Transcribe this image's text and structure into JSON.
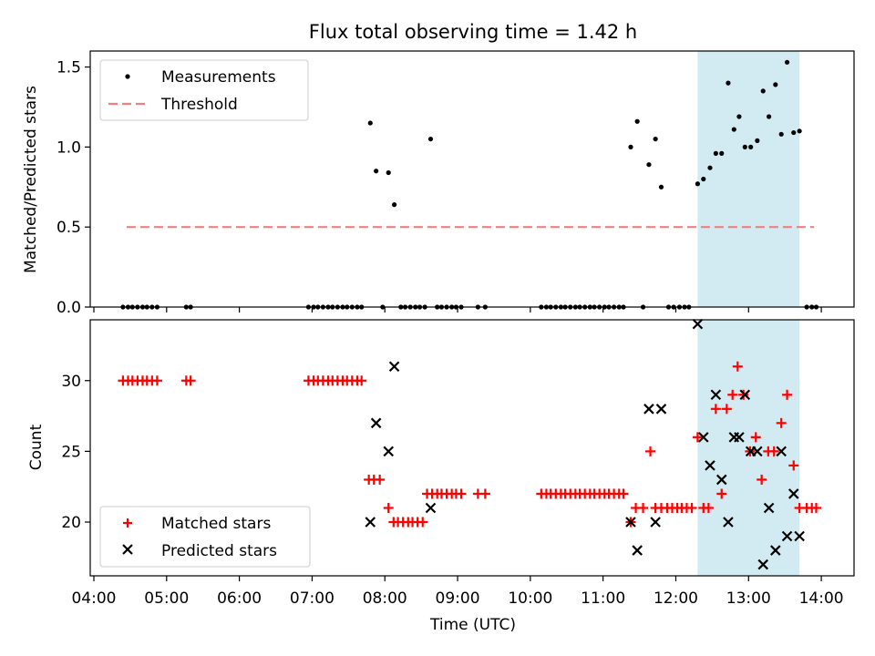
{
  "figure": {
    "title": "Flux total observing time = 1.42 h",
    "xlabel": "Time (UTC)",
    "x_ticks": [
      "04:00",
      "05:00",
      "06:00",
      "07:00",
      "08:00",
      "09:00",
      "10:00",
      "11:00",
      "12:00",
      "13:00",
      "14:00"
    ],
    "colors": {
      "measurements": "#000000",
      "threshold": "#f08080",
      "matched": "#ff0000",
      "predicted": "#000000",
      "highlight": "#add8e6"
    }
  },
  "chart_data": [
    {
      "type": "scatter",
      "panel": "top",
      "ylabel": "Matched/Predicted stars",
      "x_range_hours": [
        3.95,
        14.45
      ],
      "ylim": [
        0,
        1.6
      ],
      "y_ticks": [
        "0.0",
        "0.5",
        "1.0",
        "1.5"
      ],
      "highlight_span_hours": [
        12.3,
        13.7
      ],
      "legend": {
        "placement": "upper-left",
        "entries": [
          "Measurements",
          "Threshold"
        ]
      },
      "threshold": {
        "value": 0.5,
        "x_start": 4.45,
        "x_end": 13.9
      },
      "series": [
        {
          "name": "Measurements",
          "x_hours": [
            4.4,
            4.47,
            4.53,
            4.6,
            4.67,
            4.73,
            4.8,
            4.87,
            5.27,
            5.33,
            6.95,
            7.02,
            7.08,
            7.15,
            7.22,
            7.28,
            7.35,
            7.42,
            7.48,
            7.55,
            7.62,
            7.68,
            7.8,
            7.88,
            7.97,
            8.05,
            8.13,
            8.22,
            8.28,
            8.35,
            8.42,
            8.48,
            8.55,
            8.63,
            8.72,
            8.78,
            8.85,
            8.92,
            8.98,
            9.05,
            9.28,
            9.38,
            10.15,
            10.22,
            10.28,
            10.35,
            10.42,
            10.48,
            10.55,
            10.62,
            10.68,
            10.75,
            10.82,
            10.88,
            10.95,
            11.02,
            11.08,
            11.15,
            11.22,
            11.28,
            11.38,
            11.47,
            11.55,
            11.63,
            11.72,
            11.8,
            11.9,
            11.97,
            12.05,
            12.12,
            12.18,
            12.3,
            12.38,
            12.47,
            12.55,
            12.63,
            12.72,
            12.8,
            12.87,
            12.95,
            13.03,
            13.12,
            13.2,
            13.28,
            13.37,
            13.45,
            13.53,
            13.62,
            13.7,
            13.8,
            13.87,
            13.93
          ],
          "y": [
            0,
            0,
            0,
            0,
            0,
            0,
            0,
            0,
            0,
            0,
            0,
            0,
            0,
            0,
            0,
            0,
            0,
            0,
            0,
            0,
            0,
            0,
            1.15,
            0.85,
            0,
            0.84,
            0.64,
            0,
            0,
            0,
            0,
            0,
            0,
            1.05,
            0,
            0,
            0,
            0,
            0,
            0,
            0,
            0,
            0,
            0,
            0,
            0,
            0,
            0,
            0,
            0,
            0,
            0,
            0,
            0,
            0,
            0,
            0,
            0,
            0,
            0,
            1.0,
            1.16,
            0,
            0.89,
            1.05,
            0.75,
            0,
            0,
            0,
            0,
            0,
            0.77,
            0.8,
            0.87,
            0.96,
            0.96,
            1.4,
            1.11,
            1.19,
            1.0,
            1.0,
            1.04,
            1.35,
            1.19,
            1.39,
            1.08,
            1.53,
            1.09,
            1.1,
            0,
            0,
            0
          ]
        }
      ]
    },
    {
      "type": "scatter",
      "panel": "bottom",
      "ylabel": "Count",
      "x_range_hours": [
        3.95,
        14.45
      ],
      "ylim": [
        16.2,
        34.3
      ],
      "y_ticks": [
        "20",
        "25",
        "30"
      ],
      "highlight_span_hours": [
        12.3,
        13.7
      ],
      "legend": {
        "placement": "lower-left",
        "entries": [
          "Matched stars",
          "Predicted stars"
        ]
      },
      "series": [
        {
          "name": "Matched stars",
          "x_hours": [
            4.4,
            4.47,
            4.53,
            4.6,
            4.67,
            4.73,
            4.8,
            4.87,
            5.27,
            5.33,
            6.95,
            7.02,
            7.08,
            7.15,
            7.22,
            7.28,
            7.35,
            7.42,
            7.48,
            7.55,
            7.62,
            7.68,
            7.78,
            7.85,
            7.93,
            8.05,
            8.12,
            8.18,
            8.25,
            8.32,
            8.38,
            8.45,
            8.52,
            8.58,
            8.65,
            8.72,
            8.78,
            8.85,
            8.92,
            8.98,
            9.05,
            9.28,
            9.38,
            10.15,
            10.22,
            10.28,
            10.35,
            10.42,
            10.48,
            10.55,
            10.62,
            10.68,
            10.75,
            10.82,
            10.88,
            10.95,
            11.02,
            11.08,
            11.15,
            11.22,
            11.28,
            11.38,
            11.45,
            11.55,
            11.65,
            11.72,
            11.8,
            11.88,
            11.95,
            12.02,
            12.08,
            12.15,
            12.22,
            12.3,
            12.38,
            12.45,
            12.55,
            12.63,
            12.7,
            12.78,
            12.85,
            12.93,
            13.02,
            13.1,
            13.18,
            13.27,
            13.35,
            13.45,
            13.53,
            13.62,
            13.7,
            13.8,
            13.87,
            13.93
          ],
          "y": [
            30,
            30,
            30,
            30,
            30,
            30,
            30,
            30,
            30,
            30,
            30,
            30,
            30,
            30,
            30,
            30,
            30,
            30,
            30,
            30,
            30,
            30,
            23,
            23,
            23,
            21,
            20,
            20,
            20,
            20,
            20,
            20,
            20,
            22,
            22,
            22,
            22,
            22,
            22,
            22,
            22,
            22,
            22,
            22,
            22,
            22,
            22,
            22,
            22,
            22,
            22,
            22,
            22,
            22,
            22,
            22,
            22,
            22,
            22,
            22,
            22,
            20,
            21,
            21,
            25,
            21,
            21,
            21,
            21,
            21,
            21,
            21,
            21,
            26,
            21,
            21,
            28,
            22,
            28,
            29,
            31,
            29,
            25,
            26,
            23,
            25,
            25,
            27,
            29,
            24,
            21,
            21,
            21,
            21
          ]
        },
        {
          "name": "Predicted stars",
          "x_hours": [
            7.8,
            7.88,
            8.05,
            8.13,
            8.63,
            11.38,
            11.47,
            11.63,
            11.72,
            11.8,
            12.3,
            12.38,
            12.47,
            12.55,
            12.63,
            12.72,
            12.8,
            12.87,
            12.95,
            13.03,
            13.12,
            13.2,
            13.28,
            13.37,
            13.45,
            13.53,
            13.62,
            13.7
          ],
          "y": [
            20,
            27,
            25,
            31,
            21,
            20,
            18,
            28,
            20,
            28,
            34,
            26,
            24,
            29,
            23,
            20,
            26,
            26,
            29,
            25,
            25,
            17,
            21,
            18,
            25,
            19,
            22,
            19
          ]
        }
      ]
    }
  ]
}
